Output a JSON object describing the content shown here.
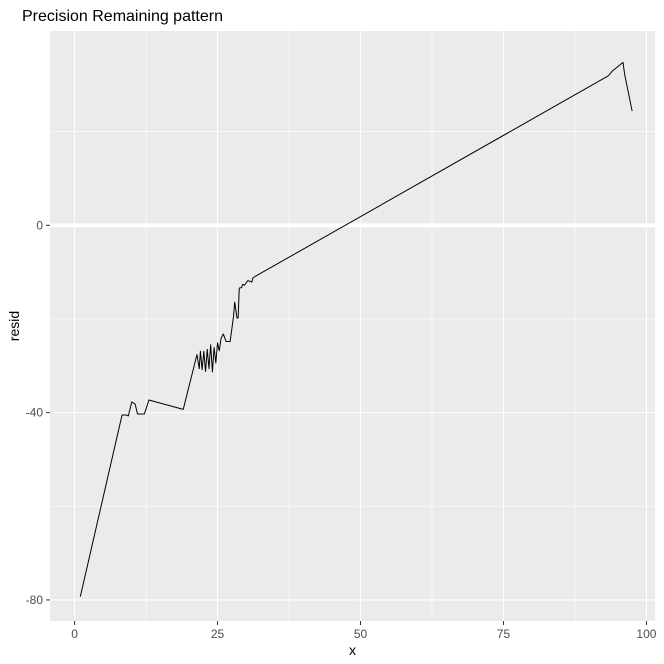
{
  "chart_data": {
    "type": "line",
    "title": "Precision Remaining pattern",
    "xlabel": "x",
    "ylabel": "resid",
    "xlim": [
      -4.3,
      101.5
    ],
    "ylim": [
      -84.5,
      41.5
    ],
    "x_ticks": [
      0,
      25,
      50,
      75,
      100
    ],
    "x_tick_labels": [
      "0",
      "25",
      "50",
      "75",
      "100"
    ],
    "y_ticks": [
      -80,
      -40,
      0
    ],
    "y_tick_labels": [
      "-80",
      "-40",
      "0"
    ],
    "grid": true,
    "highlight_hline": 0,
    "series": [
      {
        "name": "",
        "x": [
          1,
          8.3,
          9,
          9.4,
          10,
          10.6,
          11,
          12.2,
          13,
          19,
          21.4,
          21.8,
          22,
          22.3,
          22.6,
          22.9,
          23.2,
          23.5,
          23.8,
          24.1,
          24.4,
          24.7,
          25,
          25.3,
          25.6,
          26,
          26.5,
          27.2,
          27.8,
          28,
          28.4,
          28.6,
          28.8,
          29.2,
          29.4,
          29.7,
          30.3,
          31,
          31.2,
          31.6,
          93.3,
          93.6,
          94,
          95.9,
          96.2,
          97.5
        ],
        "y": [
          -79.3,
          -40.5,
          -40.5,
          -40.7,
          -37.7,
          -38.2,
          -40.3,
          -40.3,
          -37.3,
          -39.3,
          -27.6,
          -30.6,
          -26.9,
          -30.8,
          -26.9,
          -31.2,
          -26.5,
          -30.6,
          -25.5,
          -31.3,
          -26.1,
          -29.4,
          -25.1,
          -26.8,
          -24.2,
          -23.2,
          -24.8,
          -24.8,
          -19.4,
          -16.4,
          -19.8,
          -19.8,
          -13.4,
          -13.3,
          -12.6,
          -12.8,
          -11.8,
          -12.1,
          -11.2,
          -10.9,
          31.9,
          32.3,
          32.9,
          34.8,
          32.2,
          24.4
        ]
      }
    ]
  }
}
